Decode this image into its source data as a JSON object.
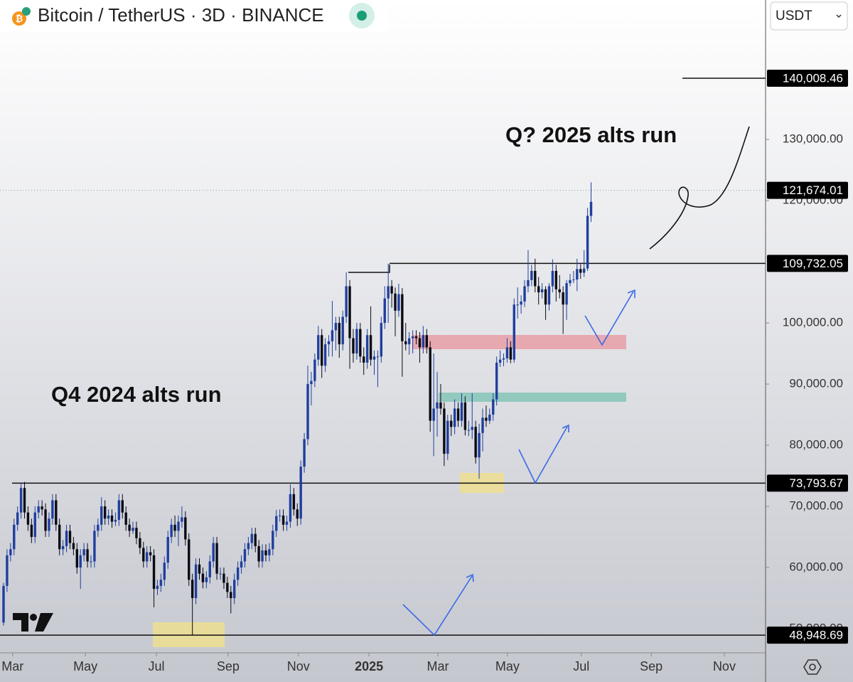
{
  "chart_data": {
    "type": "candlestick",
    "title": "Bitcoin / TetherUS · 3D · BINANCE",
    "currency": "USDT",
    "annotations": [
      "Q? 2025 alts run",
      "Q4 2024 alts run"
    ],
    "up_color": "#1f3f9e",
    "down_color": "#0a0a14",
    "xlim": [
      -1.016,
      217.9
    ],
    "xticks": [
      {
        "value": 2.6,
        "label": "Mar"
      },
      {
        "value": 23.4,
        "label": "May"
      },
      {
        "value": 43.7,
        "label": "Jul"
      },
      {
        "value": 64.2,
        "label": "Sep"
      },
      {
        "value": 84.3,
        "label": "Nov"
      },
      {
        "value": 104.5,
        "label": "2025"
      },
      {
        "value": 124.2,
        "label": "Mar"
      },
      {
        "value": 144.1,
        "label": "May"
      },
      {
        "value": 165.2,
        "label": "Jul"
      },
      {
        "value": 185.2,
        "label": "Sep"
      },
      {
        "value": 206.1,
        "label": "Nov"
      }
    ],
    "ylim": [
      46050,
      152800
    ],
    "yticks": [
      {
        "value": 50000,
        "label": "50,000.00"
      },
      {
        "value": 60000,
        "label": "60,000.00"
      },
      {
        "value": 70000,
        "label": "70,000.00"
      },
      {
        "value": 80000,
        "label": "80,000.00"
      },
      {
        "value": 90000,
        "label": "90,000.00"
      },
      {
        "value": 100000,
        "label": "100,000.00"
      },
      {
        "value": 120000,
        "label": "120,000.00"
      },
      {
        "value": 130000,
        "label": "130,000.00"
      }
    ],
    "price_lines": [
      {
        "value": 140008.46,
        "label": "140,008.46"
      },
      {
        "value": 121674.01,
        "label": "121,674.01"
      },
      {
        "value": 109732.05,
        "label": "109,732.05"
      },
      {
        "value": 73793.67,
        "label": "73,793.67"
      },
      {
        "value": 48948.69,
        "label": "48,948.69"
      }
    ],
    "ohlc": [
      [
        51000,
        57500,
        50500,
        57000
      ],
      [
        57000,
        63000,
        56000,
        62000
      ],
      [
        62000,
        64000,
        61000,
        63000
      ],
      [
        63000,
        68000,
        62000,
        67000
      ],
      [
        67000,
        70000,
        66000,
        69000
      ],
      [
        69000,
        73800,
        68000,
        73000
      ],
      [
        73000,
        74000,
        68000,
        69000
      ],
      [
        69000,
        70000,
        66000,
        67000
      ],
      [
        67000,
        68000,
        64000,
        65000
      ],
      [
        65000,
        70000,
        64000,
        69000
      ],
      [
        69000,
        71000,
        68000,
        70000
      ],
      [
        70000,
        71000,
        68500,
        69500
      ],
      [
        69500,
        70500,
        65000,
        66000
      ],
      [
        66000,
        69000,
        65000,
        68000
      ],
      [
        68000,
        72000,
        67000,
        71000
      ],
      [
        71000,
        72000,
        66000,
        67000
      ],
      [
        67000,
        68000,
        62000,
        63000
      ],
      [
        63000,
        64500,
        62000,
        63500
      ],
      [
        63500,
        67000,
        62500,
        66000
      ],
      [
        66000,
        67000,
        63000,
        64000
      ],
      [
        64000,
        65000,
        62000,
        63000
      ],
      [
        63000,
        64000,
        59000,
        60000
      ],
      [
        60000,
        63000,
        56500,
        62000
      ],
      [
        62000,
        64000,
        61000,
        63000
      ],
      [
        63000,
        64000,
        60000,
        61000
      ],
      [
        61000,
        62000,
        60000,
        61000
      ],
      [
        61000,
        67000,
        60000,
        66000
      ],
      [
        66000,
        68000,
        65000,
        67000
      ],
      [
        67000,
        71500,
        66000,
        70000
      ],
      [
        70000,
        71000,
        67000,
        68000
      ],
      [
        68000,
        69500,
        67000,
        68500
      ],
      [
        68500,
        69500,
        66500,
        67500
      ],
      [
        67500,
        69000,
        66800,
        67800
      ],
      [
        67800,
        72000,
        66800,
        71000
      ],
      [
        71000,
        72000,
        68000,
        69000
      ],
      [
        69000,
        70000,
        66000,
        67000
      ],
      [
        67000,
        68000,
        65000,
        66000
      ],
      [
        66000,
        67500,
        65500,
        66500
      ],
      [
        66500,
        67500,
        63800,
        64800
      ],
      [
        64800,
        65800,
        62200,
        63200
      ],
      [
        63200,
        64200,
        60000,
        61000
      ],
      [
        61000,
        63500,
        60000,
        62500
      ],
      [
        62500,
        63500,
        61000,
        62000
      ],
      [
        62000,
        63000,
        53500,
        56500
      ],
      [
        56500,
        58000,
        55500,
        57000
      ],
      [
        57000,
        59000,
        56000,
        58000
      ],
      [
        58000,
        61800,
        57000,
        60800
      ],
      [
        60800,
        66000,
        59800,
        65000
      ],
      [
        65000,
        68000,
        64000,
        67000
      ],
      [
        67000,
        68500,
        65000,
        66000
      ],
      [
        66000,
        68500,
        63500,
        67500
      ],
      [
        67500,
        70000,
        66500,
        68200
      ],
      [
        68200,
        69200,
        63600,
        64600
      ],
      [
        64600,
        65600,
        57000,
        58000
      ],
      [
        58000,
        59000,
        49000,
        55000
      ],
      [
        55000,
        61500,
        54000,
        60500
      ],
      [
        60500,
        61500,
        58000,
        59000
      ],
      [
        59000,
        60000,
        56600,
        57600
      ],
      [
        57600,
        59400,
        56600,
        58400
      ],
      [
        58400,
        62000,
        57400,
        61000
      ],
      [
        61000,
        65000,
        60000,
        64000
      ],
      [
        64000,
        65000,
        58000,
        59000
      ],
      [
        59000,
        60000,
        58000,
        59000
      ],
      [
        59000,
        60000,
        56500,
        57500
      ],
      [
        57500,
        58500,
        55000,
        56000
      ],
      [
        56000,
        57000,
        52500,
        55000
      ],
      [
        55000,
        59000,
        54000,
        58000
      ],
      [
        58000,
        61000,
        57000,
        60000
      ],
      [
        60000,
        62000,
        59000,
        61000
      ],
      [
        61000,
        64000,
        60000,
        63000
      ],
      [
        63000,
        65000,
        62000,
        64000
      ],
      [
        64000,
        66500,
        63000,
        65500
      ],
      [
        65500,
        66500,
        62500,
        63500
      ],
      [
        63500,
        64500,
        60000,
        61000
      ],
      [
        61000,
        63800,
        60000,
        62800
      ],
      [
        62800,
        63800,
        61000,
        62000
      ],
      [
        62000,
        64000,
        61000,
        63000
      ],
      [
        63000,
        67000,
        62000,
        66000
      ],
      [
        66000,
        69400,
        65000,
        68400
      ],
      [
        68400,
        69500,
        67500,
        68500
      ],
      [
        68500,
        69500,
        66000,
        67000
      ],
      [
        67000,
        68500,
        66000,
        67500
      ],
      [
        67500,
        73600,
        66500,
        72000
      ],
      [
        72000,
        73000,
        68500,
        69500
      ],
      [
        69500,
        70500,
        66800,
        68000
      ],
      [
        68000,
        77500,
        67000,
        76500
      ],
      [
        76500,
        82000,
        75500,
        81000
      ],
      [
        81000,
        93000,
        80000,
        90000
      ],
      [
        90000,
        92000,
        86500,
        90500
      ],
      [
        90500,
        95000,
        89500,
        94000
      ],
      [
        94000,
        99500,
        93000,
        98000
      ],
      [
        98000,
        99000,
        91000,
        93000
      ],
      [
        93000,
        97500,
        92000,
        96500
      ],
      [
        96500,
        98000,
        94500,
        97000
      ],
      [
        97000,
        103600,
        94500,
        98800
      ],
      [
        98800,
        101000,
        95500,
        100000
      ],
      [
        100000,
        101000,
        94300,
        96500
      ],
      [
        96500,
        102000,
        95500,
        101000
      ],
      [
        101000,
        108300,
        100000,
        106000
      ],
      [
        106000,
        107000,
        92500,
        97500
      ],
      [
        97500,
        99000,
        93500,
        95000
      ],
      [
        95000,
        100000,
        94000,
        99000
      ],
      [
        99000,
        100000,
        93500,
        94500
      ],
      [
        94500,
        96000,
        91500,
        93500
      ],
      [
        93500,
        99000,
        92500,
        98000
      ],
      [
        98000,
        102700,
        93000,
        94000
      ],
      [
        94000,
        95500,
        91500,
        94500
      ],
      [
        94500,
        95500,
        89500,
        94500
      ],
      [
        94500,
        101000,
        93500,
        100000
      ],
      [
        100000,
        106000,
        99000,
        104000
      ],
      [
        104000,
        109700,
        100000,
        106000
      ],
      [
        106000,
        107000,
        102500,
        104800
      ],
      [
        104800,
        105800,
        97800,
        102000
      ],
      [
        102000,
        106400,
        101000,
        104700
      ],
      [
        104700,
        105700,
        91200,
        97000
      ],
      [
        97000,
        100000,
        95500,
        96500
      ],
      [
        96500,
        98500,
        94800,
        97500
      ],
      [
        97500,
        98800,
        95000,
        97800
      ],
      [
        97800,
        98800,
        96500,
        97500
      ],
      [
        97500,
        98500,
        93500,
        96000
      ],
      [
        96000,
        99500,
        95000,
        98000
      ],
      [
        98000,
        99000,
        95000,
        96000
      ],
      [
        96000,
        97000,
        82200,
        84000
      ],
      [
        84000,
        95000,
        78200,
        86000
      ],
      [
        86000,
        92000,
        81400,
        87000
      ],
      [
        87000,
        90000,
        85000,
        86000
      ],
      [
        86000,
        87000,
        76600,
        78600
      ],
      [
        78600,
        85000,
        77600,
        84000
      ],
      [
        84000,
        85000,
        81500,
        83000
      ],
      [
        83000,
        87500,
        81800,
        86000
      ],
      [
        86000,
        87000,
        83000,
        84000
      ],
      [
        84000,
        88500,
        83000,
        87000
      ],
      [
        87000,
        88000,
        81600,
        82500
      ],
      [
        82500,
        84000,
        81500,
        82500
      ],
      [
        82500,
        88500,
        81000,
        83000
      ],
      [
        83000,
        84000,
        77000,
        78000
      ],
      [
        78000,
        83500,
        74500,
        82000
      ],
      [
        82000,
        86000,
        79000,
        84500
      ],
      [
        84500,
        86500,
        83000,
        84000
      ],
      [
        84000,
        86000,
        83500,
        85000
      ],
      [
        85000,
        88500,
        84000,
        87500
      ],
      [
        87500,
        94500,
        86500,
        93500
      ],
      [
        93500,
        95500,
        92800,
        94000
      ],
      [
        94000,
        95000,
        92900,
        94200
      ],
      [
        94200,
        97500,
        93500,
        96000
      ],
      [
        96000,
        97000,
        93400,
        94000
      ],
      [
        94000,
        104000,
        93500,
        103000
      ],
      [
        103000,
        105800,
        100700,
        103000
      ],
      [
        103000,
        104500,
        101500,
        103500
      ],
      [
        103500,
        107000,
        102600,
        106000
      ],
      [
        106000,
        111900,
        105000,
        107000
      ],
      [
        107000,
        109500,
        106000,
        108500
      ],
      [
        108500,
        110500,
        105000,
        106000
      ],
      [
        106000,
        107500,
        103000,
        105000
      ],
      [
        105000,
        106500,
        104000,
        105500
      ],
      [
        105500,
        106000,
        100500,
        103000
      ],
      [
        103000,
        106500,
        102000,
        106000
      ],
      [
        106000,
        110400,
        105000,
        108500
      ],
      [
        108500,
        109500,
        103500,
        105500
      ],
      [
        105500,
        107800,
        104000,
        105000
      ],
      [
        105000,
        106000,
        98200,
        103000
      ],
      [
        103000,
        107000,
        100500,
        106500
      ],
      [
        106500,
        108000,
        106000,
        107000
      ],
      [
        107000,
        108500,
        106500,
        107100
      ],
      [
        107100,
        110500,
        105200,
        108800
      ],
      [
        108800,
        109600,
        107200,
        108200
      ],
      [
        108200,
        111900,
        107500,
        108900
      ],
      [
        108900,
        118800,
        108500,
        117500
      ],
      [
        117500,
        123000,
        116500,
        119800
      ]
    ]
  }
}
